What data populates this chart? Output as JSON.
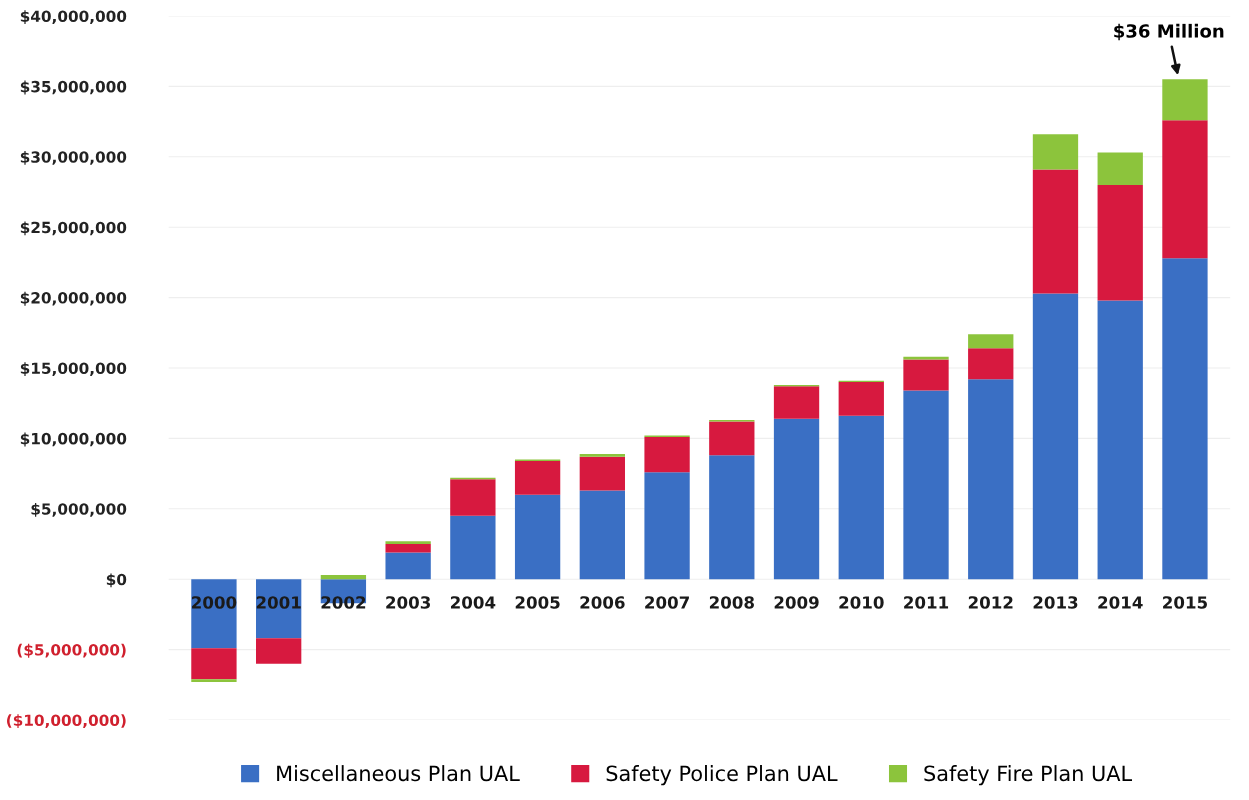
{
  "chart_data": {
    "type": "bar",
    "stacked": true,
    "categories": [
      "2000",
      "2001",
      "2002",
      "2003",
      "2004",
      "2005",
      "2006",
      "2007",
      "2008",
      "2009",
      "2010",
      "2011",
      "2012",
      "2013",
      "2014",
      "2015"
    ],
    "series": [
      {
        "name": "Miscellaneous Plan UAL",
        "color": "#3a6fc4",
        "values": [
          -4900000,
          -4200000,
          -1700000,
          1900000,
          4500000,
          6000000,
          6300000,
          7600000,
          8800000,
          11400000,
          11600000,
          13400000,
          14200000,
          20300000,
          19800000,
          22800000
        ]
      },
      {
        "name": "Safety Police Plan UAL",
        "color": "#d7193f",
        "values": [
          -2200000,
          -1800000,
          0,
          600000,
          2600000,
          2400000,
          2400000,
          2500000,
          2400000,
          2300000,
          2400000,
          2200000,
          2200000,
          8800000,
          8200000,
          9800000
        ]
      },
      {
        "name": "Safety Fire Plan UAL",
        "color": "#8cc43c",
        "values": [
          -200000,
          0,
          300000,
          200000,
          100000,
          100000,
          200000,
          100000,
          100000,
          100000,
          100000,
          200000,
          1000000,
          2500000,
          2300000,
          2900000
        ]
      }
    ],
    "ylim": [
      -10000000,
      40000000
    ],
    "yticks": [
      {
        "value": -10000000,
        "label": "($10,000,000)"
      },
      {
        "value": -5000000,
        "label": "($5,000,000)"
      },
      {
        "value": 0,
        "label": "$0"
      },
      {
        "value": 5000000,
        "label": "$5,000,000"
      },
      {
        "value": 10000000,
        "label": "$10,000,000"
      },
      {
        "value": 15000000,
        "label": "$15,000,000"
      },
      {
        "value": 20000000,
        "label": "$20,000,000"
      },
      {
        "value": 25000000,
        "label": "$25,000,000"
      },
      {
        "value": 30000000,
        "label": "$30,000,000"
      },
      {
        "value": 35000000,
        "label": "$35,000,000"
      },
      {
        "value": 40000000,
        "label": "$40,000,000"
      }
    ],
    "grid": "y",
    "legend": "bottom",
    "annotations": [
      {
        "text": "$36 Million",
        "x": "2015",
        "y": 35600000
      }
    ]
  }
}
